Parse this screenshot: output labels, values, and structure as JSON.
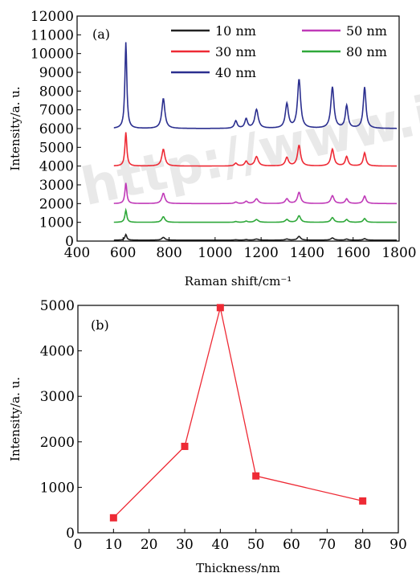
{
  "watermark": "http://www.ixue",
  "chart_data": [
    {
      "type": "line",
      "panel_label": "(a)",
      "xlabel": "Raman shift/cm⁻¹",
      "ylabel": "Intensity/a. u.",
      "xlim": [
        400,
        1800
      ],
      "ylim": [
        0,
        12000
      ],
      "x_ticks": [
        400,
        600,
        800,
        1000,
        1200,
        1400,
        1600,
        1800
      ],
      "y_ticks": [
        0,
        1000,
        2000,
        3000,
        4000,
        5000,
        6000,
        7000,
        8000,
        9000,
        10000,
        11000,
        12000
      ],
      "x_range": [
        560,
        1790
      ],
      "peaks": [
        {
          "x": 612,
          "width": 5
        },
        {
          "x": 775,
          "width": 8
        },
        {
          "x": 1090,
          "width": 7
        },
        {
          "x": 1135,
          "width": 7
        },
        {
          "x": 1180,
          "width": 9
        },
        {
          "x": 1312,
          "width": 8
        },
        {
          "x": 1365,
          "width": 8
        },
        {
          "x": 1510,
          "width": 8
        },
        {
          "x": 1572,
          "width": 7
        },
        {
          "x": 1650,
          "width": 7
        }
      ],
      "series": [
        {
          "name": "10 nm",
          "color": "#222222",
          "baseline": 50,
          "peak_heights": [
            300,
            150,
            20,
            30,
            60,
            60,
            200,
            120,
            60,
            80
          ]
        },
        {
          "name": "30 nm",
          "color": "#ee2a35",
          "baseline": 4000,
          "peak_heights": [
            1800,
            900,
            150,
            250,
            500,
            450,
            1100,
            900,
            500,
            700
          ]
        },
        {
          "name": "40 nm",
          "color": "#2b2f8f",
          "baseline": 6000,
          "peak_heights": [
            4600,
            1600,
            400,
            500,
            1000,
            1300,
            2600,
            2200,
            1200,
            2200
          ]
        },
        {
          "name": "50 nm",
          "color": "#c03ab8",
          "baseline": 2000,
          "peak_heights": [
            1100,
            550,
            80,
            120,
            250,
            250,
            600,
            420,
            250,
            400
          ]
        },
        {
          "name": "80 nm",
          "color": "#2fa83a",
          "baseline": 1000,
          "peak_heights": [
            650,
            300,
            40,
            60,
            150,
            150,
            350,
            250,
            150,
            200
          ]
        }
      ],
      "legend_left": [
        "10 nm",
        "30 nm",
        "40 nm"
      ],
      "legend_right": [
        "50 nm",
        "80 nm"
      ]
    },
    {
      "type": "line",
      "panel_label": "(b)",
      "xlabel": "Thickness/nm",
      "ylabel": "Intensity/a. u.",
      "xlim": [
        0,
        90
      ],
      "ylim": [
        0,
        5000
      ],
      "x_ticks": [
        0,
        10,
        20,
        30,
        40,
        50,
        60,
        70,
        80,
        90
      ],
      "y_ticks": [
        0,
        1000,
        2000,
        3000,
        4000,
        5000
      ],
      "color": "#ee2a35",
      "x": [
        10,
        30,
        40,
        50,
        80
      ],
      "y": [
        330,
        1900,
        4950,
        1250,
        700
      ]
    }
  ]
}
